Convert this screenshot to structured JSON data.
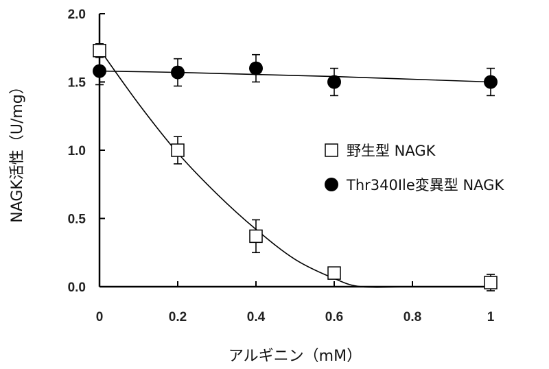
{
  "chart_data": {
    "type": "scatter",
    "xlabel": "アルギニン（mM）",
    "ylabel": "NAGK活性（U/mg）",
    "xlim": [
      0,
      1
    ],
    "ylim": [
      0,
      2
    ],
    "xticks": [
      0,
      0.2,
      0.4,
      0.6,
      0.8,
      1
    ],
    "xtick_labels": [
      "0",
      "0.2",
      "0.4",
      "0.6",
      "0.8",
      "1"
    ],
    "yticks": [
      0,
      0.5,
      1,
      1.5,
      2
    ],
    "ytick_labels": [
      "0.0",
      "0.5",
      "1.0",
      "1.5",
      "2.0"
    ],
    "grid": false,
    "legend_position": "right",
    "series": [
      {
        "name": "野生型 NAGK",
        "marker": "open-square",
        "color": "#000000",
        "x": [
          0,
          0.2,
          0.4,
          0.6,
          1
        ],
        "y": [
          1.73,
          1.0,
          0.37,
          0.1,
          0.03
        ],
        "error": [
          0.05,
          0.1,
          0.12,
          0.04,
          0.06
        ],
        "fit_curve": {
          "x": [
            0,
            0.1,
            0.2,
            0.3,
            0.4,
            0.5,
            0.6,
            0.67,
            0.8,
            1.0
          ],
          "y": [
            1.74,
            1.34,
            0.98,
            0.68,
            0.42,
            0.2,
            0.06,
            0.0,
            0.0,
            0.0
          ]
        }
      },
      {
        "name": "Thr340Ile変異型 NAGK",
        "marker": "filled-circle",
        "color": "#000000",
        "x": [
          0,
          0.2,
          0.4,
          0.6,
          1
        ],
        "y": [
          1.58,
          1.57,
          1.6,
          1.5,
          1.5
        ],
        "error": [
          0.1,
          0.1,
          0.1,
          0.1,
          0.1
        ],
        "fit_curve": {
          "x": [
            0,
            0.2,
            0.4,
            0.6,
            0.8,
            1.0
          ],
          "y": [
            1.58,
            1.57,
            1.555,
            1.54,
            1.52,
            1.5
          ]
        }
      }
    ]
  }
}
